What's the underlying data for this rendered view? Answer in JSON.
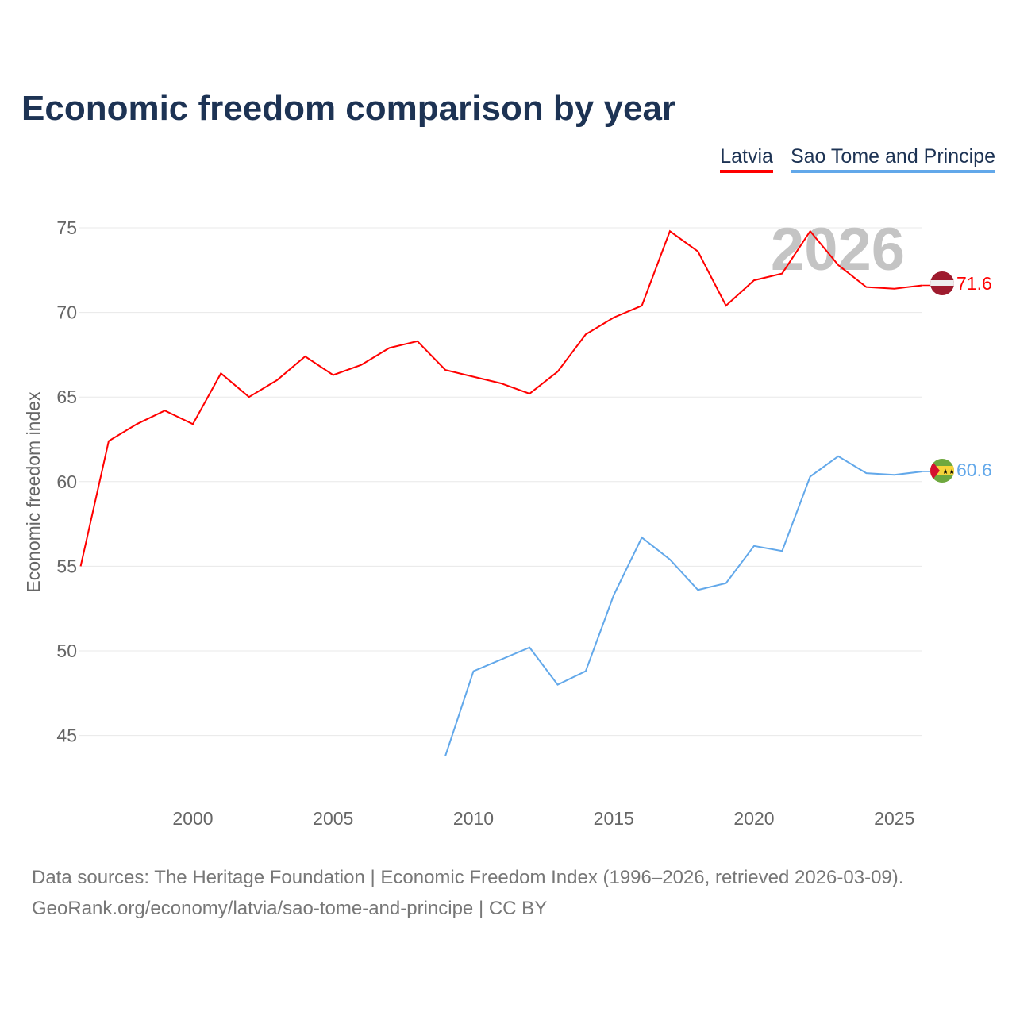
{
  "title": "Economic freedom comparison by year",
  "legend": [
    "Latvia",
    "Sao Tome and Principe"
  ],
  "source_line1": "Data sources: The Heritage Foundation | Economic Freedom Index (1996–2026, retrieved 2026-03-09).",
  "source_line2": "GeoRank.org/economy/latvia/sao-tome-and-principe | CC BY",
  "chart_data": {
    "type": "line",
    "title": "Economic freedom comparison by year",
    "xlabel": "",
    "ylabel": "Economic freedom index",
    "xlim": [
      1996,
      2026
    ],
    "ylim": [
      41.5,
      77
    ],
    "xticks": [
      2000,
      2005,
      2010,
      2015,
      2020,
      2025
    ],
    "yticks": [
      45,
      50,
      55,
      60,
      65,
      70,
      75
    ],
    "grid": true,
    "legend_position": "top-right",
    "watermark_year": "2026",
    "series": [
      {
        "name": "Latvia",
        "color": "#ff0000",
        "end_label": "71.6",
        "flag": "latvia",
        "x": [
          1996,
          1997,
          1998,
          1999,
          2000,
          2001,
          2002,
          2003,
          2004,
          2005,
          2006,
          2007,
          2008,
          2009,
          2010,
          2011,
          2012,
          2013,
          2014,
          2015,
          2016,
          2017,
          2018,
          2019,
          2020,
          2021,
          2022,
          2023,
          2024,
          2025,
          2026
        ],
        "y": [
          55.0,
          62.4,
          63.4,
          64.2,
          63.4,
          66.4,
          65.0,
          66.0,
          67.4,
          66.3,
          66.9,
          67.9,
          68.3,
          66.6,
          66.2,
          65.8,
          65.2,
          66.5,
          68.7,
          69.7,
          70.4,
          74.8,
          73.6,
          70.4,
          71.9,
          72.3,
          74.8,
          72.8,
          71.5,
          71.4,
          71.6
        ]
      },
      {
        "name": "Sao Tome and Principe",
        "color": "#62a8ea",
        "end_label": "60.6",
        "flag": "sao-tome",
        "x": [
          2009,
          2010,
          2011,
          2012,
          2013,
          2014,
          2015,
          2016,
          2017,
          2018,
          2019,
          2020,
          2021,
          2022,
          2023,
          2024,
          2025,
          2026
        ],
        "y": [
          43.8,
          48.8,
          49.5,
          50.2,
          48.0,
          48.8,
          53.3,
          56.7,
          55.4,
          53.6,
          54.0,
          56.2,
          55.9,
          60.3,
          61.5,
          60.5,
          60.4,
          60.6
        ]
      }
    ]
  }
}
